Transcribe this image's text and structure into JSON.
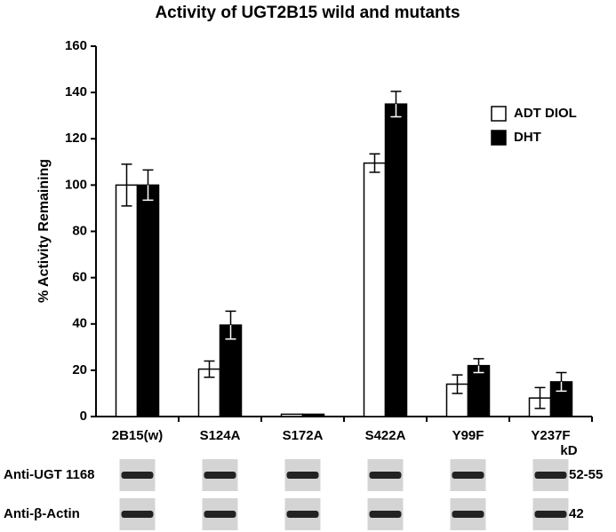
{
  "chart_data": {
    "type": "bar",
    "title": "Activity of UGT2B15 wild and mutants",
    "y_label": "% Activity Remaining",
    "categories": [
      "2B15(w)",
      "S124A",
      "S172A",
      "S422A",
      "Y99F",
      "Y237F"
    ],
    "series": [
      {
        "name": "ADT DIOL",
        "color": "#ffffff",
        "values": [
          100,
          20.5,
          1,
          109.5,
          14,
          8
        ],
        "errors": [
          9,
          3.5,
          0,
          4,
          4,
          4.5
        ]
      },
      {
        "name": "DHT",
        "color": "#000000",
        "values": [
          100,
          39.5,
          1,
          135,
          22,
          15
        ],
        "errors": [
          6.5,
          6,
          0,
          5.5,
          3,
          4
        ]
      }
    ],
    "ylim": [
      0,
      160
    ],
    "yticks": [
      0,
      20,
      40,
      60,
      80,
      100,
      120,
      140,
      160
    ],
    "grid": false,
    "legend": "upper right"
  },
  "blots": {
    "kd_label": "kD",
    "rows": [
      {
        "label": "Anti-UGT 1168",
        "kd": "52-55"
      },
      {
        "label": "Anti-β-Actin",
        "kd": "42"
      }
    ]
  }
}
